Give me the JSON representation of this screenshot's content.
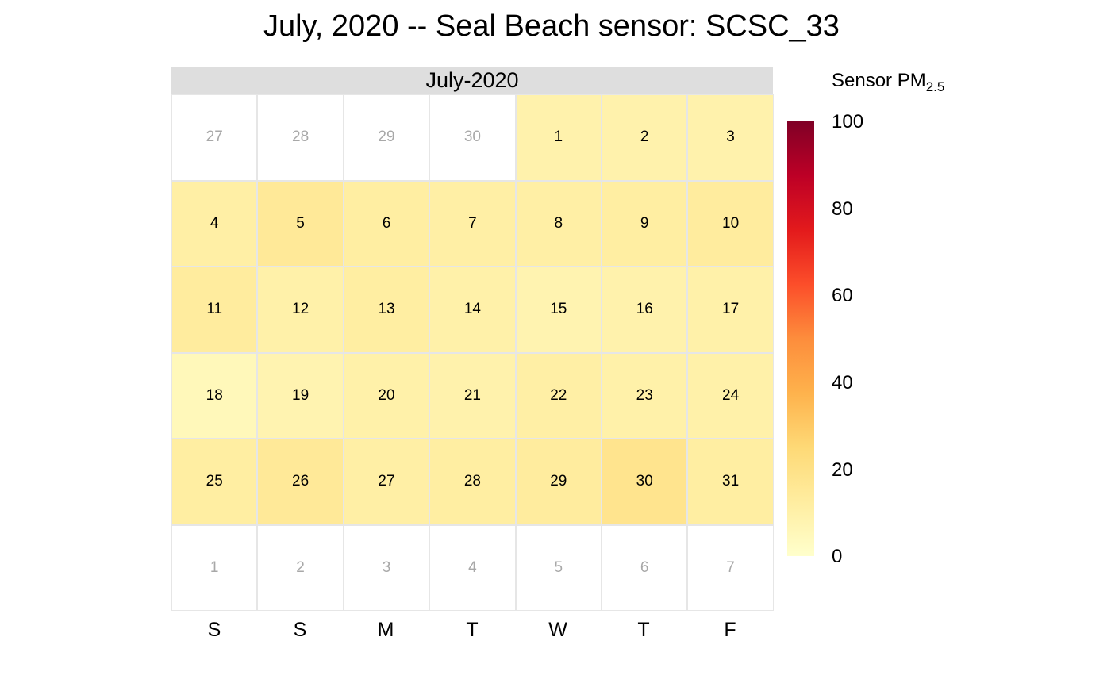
{
  "title": "July, 2020 -- Seal Beach sensor: SCSC_33",
  "chart_data": {
    "type": "heatmap",
    "title": "July, 2020 -- Seal Beach sensor: SCSC_33",
    "panel_label": "July-2020",
    "weekdays": [
      "S",
      "S",
      "M",
      "T",
      "W",
      "T",
      "F"
    ],
    "legend": {
      "title": "Sensor PM",
      "subscript": "2.5",
      "ticks": [
        "100",
        "80",
        "60",
        "40",
        "20",
        "0"
      ],
      "range": [
        0,
        100
      ],
      "colors": [
        "#ffffcc",
        "#ffeda0",
        "#fed976",
        "#feb24c",
        "#fd8d3c",
        "#fc4e2a",
        "#e31a1c",
        "#bd0026",
        "#800026"
      ]
    },
    "leading_days": [
      27,
      28,
      29,
      30
    ],
    "trailing_days": [
      1,
      2,
      3,
      4,
      5,
      6,
      7
    ],
    "days": [
      1,
      2,
      3,
      4,
      5,
      6,
      7,
      8,
      9,
      10,
      11,
      12,
      13,
      14,
      15,
      16,
      17,
      18,
      19,
      20,
      21,
      22,
      23,
      24,
      25,
      26,
      27,
      28,
      29,
      30,
      31
    ],
    "values": [
      9,
      9,
      9,
      11,
      15,
      12,
      11,
      11,
      12,
      13,
      13,
      10,
      12,
      10,
      8,
      9,
      10,
      5,
      8,
      10,
      9,
      11,
      10,
      10,
      12,
      15,
      11,
      12,
      13,
      18,
      12
    ]
  }
}
